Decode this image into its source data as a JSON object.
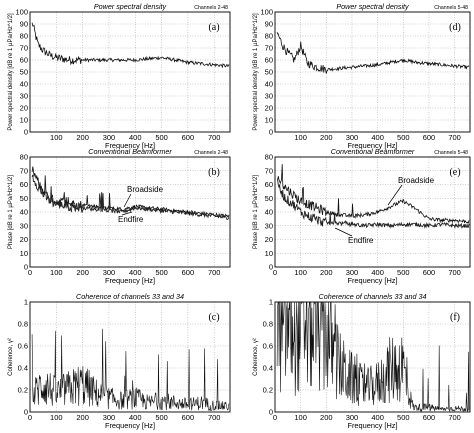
{
  "chart_data": [
    {
      "panel": "a",
      "type": "line",
      "title": "Power spectral density",
      "channels": "Channels 2-48",
      "xlabel": "Frequency [Hz]",
      "ylabel": "Power spectral density [dB re 1 µPa/Hz^1/2]",
      "xlim": [
        0,
        760
      ],
      "ylim": [
        0,
        100
      ],
      "xticks": [
        100,
        200,
        300,
        400,
        500,
        600,
        700
      ],
      "yticks": [
        0,
        10,
        20,
        30,
        40,
        50,
        60,
        70,
        80,
        90,
        100
      ],
      "series": [
        {
          "x": [
            10,
            30,
            50,
            75,
            100,
            150,
            200,
            250,
            300,
            350,
            400,
            450,
            500,
            550,
            600,
            650,
            700,
            750
          ],
          "values": [
            90,
            73,
            68,
            64,
            62,
            60,
            60,
            60,
            60,
            60,
            60,
            61,
            62,
            60,
            58,
            57,
            56,
            55
          ]
        }
      ]
    },
    {
      "panel": "d",
      "type": "line",
      "title": "Power spectral density",
      "channels": "Channels 5-48",
      "xlabel": "Frequency [Hz]",
      "ylabel": "Power spectral density [dB re 1 µPa/Hz^1/2]",
      "xlim": [
        0,
        760
      ],
      "ylim": [
        0,
        100
      ],
      "xticks": [
        100,
        200,
        300,
        400,
        500,
        600,
        700
      ],
      "yticks": [
        0,
        10,
        20,
        30,
        40,
        50,
        60,
        70,
        80,
        90,
        100
      ],
      "series": [
        {
          "x": [
            10,
            30,
            50,
            75,
            100,
            125,
            150,
            200,
            250,
            300,
            350,
            400,
            450,
            500,
            550,
            600,
            650,
            700,
            750
          ],
          "values": [
            82,
            72,
            66,
            60,
            72,
            58,
            55,
            52,
            53,
            54,
            55,
            56,
            58,
            60,
            58,
            57,
            56,
            55,
            54
          ]
        }
      ]
    },
    {
      "panel": "b",
      "type": "line",
      "title": "Conventional Beamformer",
      "channels": "Channels 2-48",
      "xlabel": "Frequency [Hz]",
      "ylabel": "Phase [dB re 1 µPa/Hz^1/2]",
      "xlim": [
        0,
        760
      ],
      "ylim": [
        0,
        80
      ],
      "xticks": [
        0,
        100,
        200,
        300,
        400,
        500,
        600,
        700
      ],
      "yticks": [
        0,
        10,
        20,
        30,
        40,
        50,
        60,
        70,
        80
      ],
      "annotations": [
        "Broadside",
        "Endfire"
      ],
      "series": [
        {
          "x": [
            10,
            40,
            75,
            100,
            150,
            200,
            250,
            300,
            350,
            400,
            450,
            500,
            550,
            600,
            650,
            700,
            750
          ],
          "values": [
            70,
            58,
            50,
            48,
            46,
            45,
            44,
            43,
            42,
            44,
            43,
            42,
            41,
            40,
            39,
            38,
            37
          ]
        },
        {
          "x": [
            10,
            40,
            75,
            100,
            150,
            200,
            250,
            300,
            350,
            400,
            450,
            500,
            550,
            600,
            650,
            700,
            750
          ],
          "values": [
            66,
            55,
            48,
            46,
            44,
            43,
            42,
            41,
            40,
            43,
            42,
            41,
            40,
            39,
            38,
            37,
            36
          ]
        }
      ]
    },
    {
      "panel": "e",
      "type": "line",
      "title": "Conventional Beamformer",
      "channels": "Channels 5-48",
      "xlabel": "Frequency [Hz]",
      "ylabel": "Phase [dB re 1 µPa/Hz^1/2]",
      "xlim": [
        0,
        760
      ],
      "ylim": [
        0,
        80
      ],
      "xticks": [
        0,
        100,
        200,
        300,
        400,
        500,
        600,
        700
      ],
      "yticks": [
        0,
        10,
        20,
        30,
        40,
        50,
        60,
        70,
        80
      ],
      "annotations": [
        "Broadside",
        "Endfire"
      ],
      "series": [
        {
          "x": [
            10,
            40,
            75,
            100,
            150,
            200,
            250,
            300,
            350,
            400,
            450,
            500,
            550,
            600,
            650,
            700,
            750
          ],
          "values": [
            65,
            58,
            52,
            48,
            44,
            40,
            38,
            37,
            38,
            40,
            44,
            48,
            42,
            35,
            34,
            34,
            33
          ]
        },
        {
          "x": [
            10,
            40,
            75,
            100,
            150,
            200,
            250,
            300,
            350,
            400,
            450,
            500,
            550,
            600,
            650,
            700,
            750
          ],
          "values": [
            60,
            50,
            45,
            40,
            35,
            32,
            32,
            31,
            30,
            31,
            30,
            31,
            31,
            30,
            31,
            30,
            30
          ]
        }
      ]
    },
    {
      "panel": "c",
      "type": "line",
      "title": "Coherence of channels 33 and 34",
      "xlabel": "Frequency [Hz]",
      "ylabel": "Coherence, γ²",
      "xlim": [
        0,
        760
      ],
      "ylim": [
        0,
        1
      ],
      "xticks": [
        0,
        100,
        200,
        300,
        400,
        500,
        600,
        700
      ],
      "yticks": [
        0,
        0.2,
        0.4,
        0.6,
        0.8,
        1
      ],
      "series": [
        {
          "x": [
            0,
            50,
            100,
            150,
            200,
            250,
            300,
            350,
            400,
            450,
            500,
            550,
            600,
            650,
            700,
            750
          ],
          "values": [
            0.15,
            0.3,
            0.2,
            0.25,
            0.3,
            0.2,
            0.15,
            0.12,
            0.15,
            0.1,
            0.12,
            0.1,
            0.08,
            0.1,
            0.07,
            0.06
          ]
        }
      ]
    },
    {
      "panel": "f",
      "type": "line",
      "title": "Coherence of channels 33 and 34",
      "xlabel": "Frequency [Hz]",
      "ylabel": "Coherence, γ²",
      "xlim": [
        0,
        760
      ],
      "ylim": [
        0,
        1
      ],
      "xticks": [
        0,
        100,
        200,
        300,
        400,
        500,
        600,
        700
      ],
      "yticks": [
        0,
        0.2,
        0.4,
        0.6,
        0.8,
        1
      ],
      "series": [
        {
          "x": [
            20,
            50,
            100,
            150,
            200,
            230,
            260,
            300,
            350,
            400,
            450,
            500,
            520,
            540,
            600,
            650,
            700,
            750
          ],
          "values": [
            0.9,
            0.95,
            0.92,
            0.95,
            0.9,
            0.6,
            0.45,
            0.35,
            0.25,
            0.3,
            0.45,
            0.5,
            0.2,
            0.05,
            0.05,
            0.03,
            0.04,
            0.03
          ]
        }
      ]
    }
  ]
}
